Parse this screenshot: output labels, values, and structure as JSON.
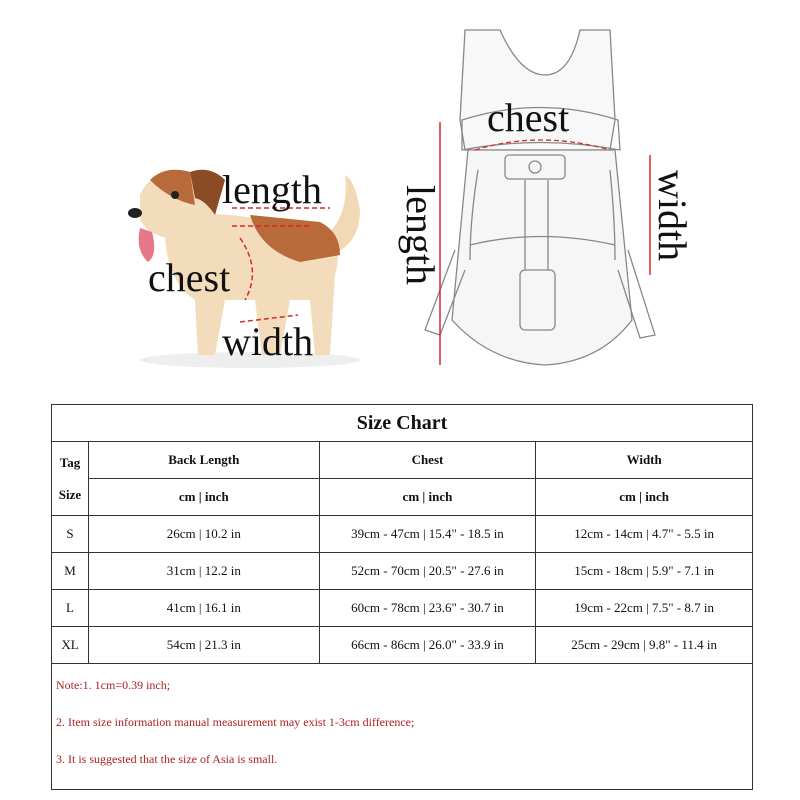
{
  "illustration": {
    "dog_labels": {
      "length": "length",
      "chest": "chest",
      "width": "width"
    },
    "carrier_labels": {
      "chest": "chest",
      "length": "length",
      "width": "width"
    },
    "measure_line_color": "#d62a2a"
  },
  "size_chart": {
    "title": "Size Chart",
    "tag_header": [
      "Tag",
      "Size"
    ],
    "columns": [
      "Back Length",
      "Chest",
      "Width"
    ],
    "unit_label": "cm | inch",
    "rows": [
      {
        "size": "S",
        "back_length": "26cm | 10.2 in",
        "chest": "39cm - 47cm | 15.4\" - 18.5 in",
        "width": "12cm - 14cm | 4.7\" - 5.5 in"
      },
      {
        "size": "M",
        "back_length": "31cm | 12.2 in",
        "chest": "52cm - 70cm | 20.5\" - 27.6 in",
        "width": "15cm - 18cm | 5.9\" - 7.1 in"
      },
      {
        "size": "L",
        "back_length": "41cm | 16.1 in",
        "chest": "60cm - 78cm | 23.6\" - 30.7 in",
        "width": "19cm - 22cm | 7.5\" - 8.7 in"
      },
      {
        "size": "XL",
        "back_length": "54cm | 21.3 in",
        "chest": "66cm - 86cm | 26.0\" - 33.9 in",
        "width": "25cm - 29cm | 9.8\" - 11.4 in"
      }
    ],
    "notes": [
      "Note:1.    1cm=0.39 inch;",
      "2.  Item size information manual measurement may exist 1-3cm difference;",
      "3.  It is suggested that the size of Asia is small."
    ],
    "note_color": "#b02020"
  }
}
